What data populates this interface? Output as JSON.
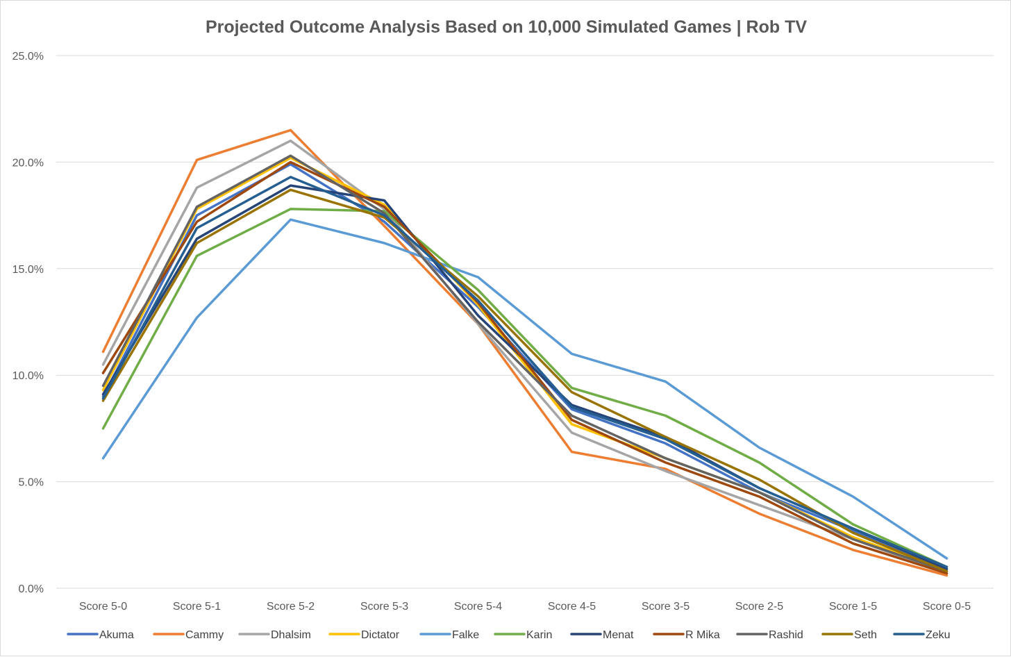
{
  "chart_data": {
    "type": "line",
    "title": "Projected Outcome Analysis Based on 10,000 Simulated Games | Rob TV",
    "xlabel": "",
    "ylabel": "",
    "categories": [
      "Score 5-0",
      "Score 5-1",
      "Score 5-2",
      "Score 5-3",
      "Score 5-4",
      "Score 4-5",
      "Score 3-5",
      "Score 2-5",
      "Score 1-5",
      "Score 0-5"
    ],
    "y_ticks": [
      "0.0%",
      "5.0%",
      "10.0%",
      "15.0%",
      "20.0%",
      "25.0%"
    ],
    "ylim": [
      0,
      25
    ],
    "grid": true,
    "legend_position": "bottom",
    "series": [
      {
        "name": "Akuma",
        "color": "#4472C4",
        "values": [
          9.0,
          17.5,
          19.9,
          17.2,
          13.2,
          8.4,
          6.8,
          4.5,
          2.7,
          0.9
        ]
      },
      {
        "name": "Cammy",
        "color": "#ED7D31",
        "values": [
          11.1,
          20.1,
          21.5,
          17.0,
          12.4,
          6.4,
          5.6,
          3.5,
          1.8,
          0.6
        ]
      },
      {
        "name": "Dhalsim",
        "color": "#A5A5A5",
        "values": [
          10.5,
          18.8,
          21.0,
          17.8,
          12.4,
          7.3,
          5.5,
          3.9,
          2.3,
          0.7
        ]
      },
      {
        "name": "Dictator",
        "color": "#FFC000",
        "values": [
          9.3,
          17.8,
          20.2,
          18.0,
          13.3,
          7.7,
          6.1,
          4.5,
          2.4,
          0.8
        ]
      },
      {
        "name": "Falke",
        "color": "#5B9BD5",
        "values": [
          6.1,
          12.7,
          17.3,
          16.2,
          14.6,
          11.0,
          9.7,
          6.6,
          4.3,
          1.4
        ]
      },
      {
        "name": "Karin",
        "color": "#70AD47",
        "values": [
          7.5,
          15.6,
          17.8,
          17.7,
          14.0,
          9.4,
          8.1,
          5.9,
          3.0,
          1.0
        ]
      },
      {
        "name": "Menat",
        "color": "#264478",
        "values": [
          9.1,
          16.4,
          18.9,
          18.2,
          12.8,
          8.6,
          7.1,
          4.7,
          2.8,
          0.9
        ]
      },
      {
        "name": "R Mika",
        "color": "#9E480E",
        "values": [
          10.1,
          17.2,
          20.0,
          17.9,
          13.4,
          7.9,
          5.9,
          4.3,
          2.1,
          0.7
        ]
      },
      {
        "name": "Rashid",
        "color": "#636363",
        "values": [
          9.5,
          17.9,
          20.3,
          17.6,
          12.5,
          8.1,
          6.1,
          4.5,
          2.3,
          0.8
        ]
      },
      {
        "name": "Seth",
        "color": "#997300",
        "values": [
          8.8,
          16.2,
          18.7,
          17.4,
          13.7,
          9.2,
          7.1,
          5.1,
          2.6,
          0.8
        ]
      },
      {
        "name": "Zeku",
        "color": "#255E91",
        "values": [
          8.9,
          16.9,
          19.3,
          17.5,
          13.5,
          8.5,
          7.0,
          4.7,
          2.8,
          1.0
        ]
      }
    ]
  }
}
